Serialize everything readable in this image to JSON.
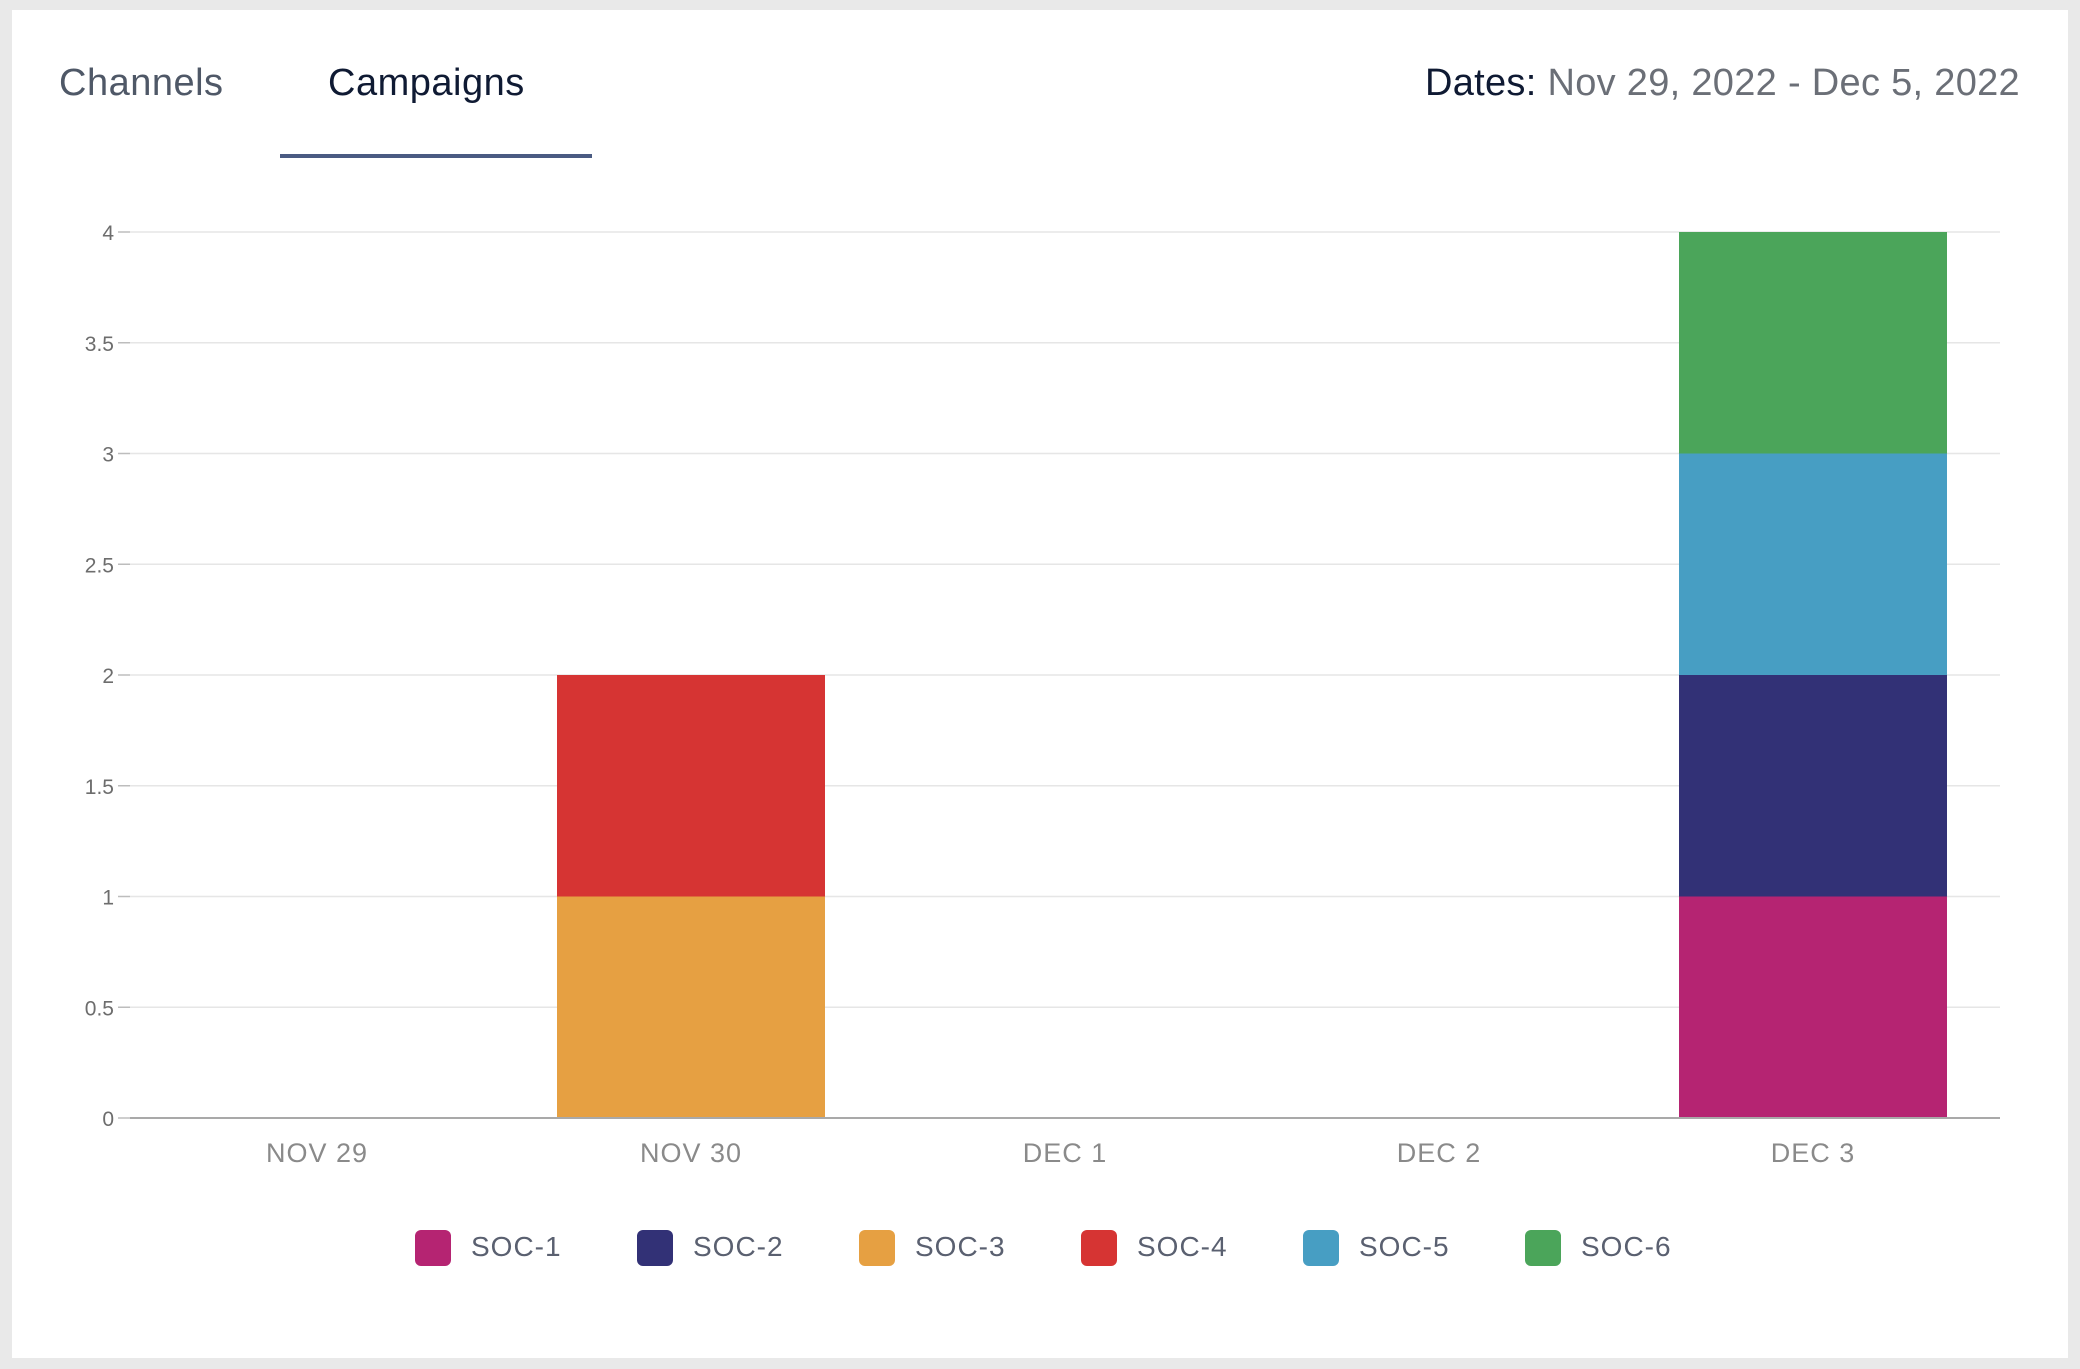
{
  "tabs": {
    "channels_label": "Channels",
    "campaigns_label": "Campaigns",
    "active": "Campaigns"
  },
  "dates": {
    "label": "Dates:",
    "value": "Nov 29, 2022 - Dec 5, 2022"
  },
  "chart_data": {
    "type": "bar",
    "stacked": true,
    "categories": [
      "NOV 29",
      "NOV 30",
      "DEC 1",
      "DEC 2",
      "DEC 3"
    ],
    "series": [
      {
        "name": "SOC-1",
        "color": "#b52472",
        "values": [
          0,
          0,
          0,
          0,
          1
        ]
      },
      {
        "name": "SOC-2",
        "color": "#323176",
        "values": [
          0,
          0,
          0,
          0,
          1
        ]
      },
      {
        "name": "SOC-3",
        "color": "#e6a042",
        "values": [
          0,
          1,
          0,
          0,
          0
        ]
      },
      {
        "name": "SOC-4",
        "color": "#d63433",
        "values": [
          0,
          1,
          0,
          0,
          0
        ]
      },
      {
        "name": "SOC-5",
        "color": "#479ec3",
        "values": [
          0,
          0,
          0,
          0,
          1
        ]
      },
      {
        "name": "SOC-6",
        "color": "#4ba55a",
        "values": [
          0,
          0,
          0,
          0,
          1
        ]
      }
    ],
    "ylim": [
      0,
      4
    ],
    "yticks": [
      "0",
      "0.5",
      "1",
      "1.5",
      "2",
      "2.5",
      "3",
      "3.5",
      "4"
    ],
    "grid": true,
    "legend_position": "bottom-center"
  }
}
